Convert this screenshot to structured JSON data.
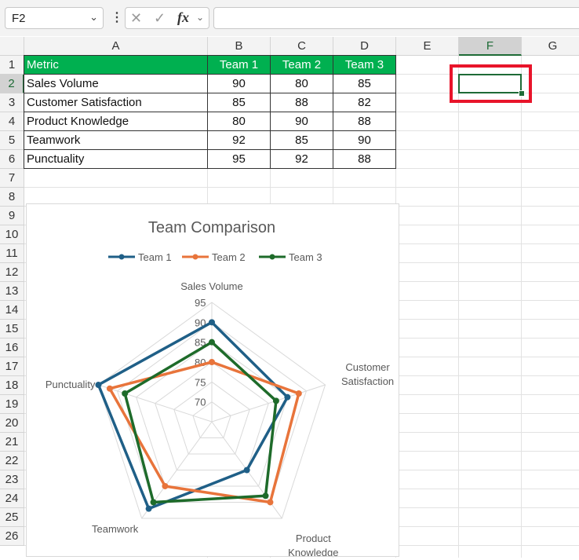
{
  "formula_bar": {
    "name_box": "F2",
    "formula": "",
    "icons": [
      "chevron-down-icon",
      "more-options-icon",
      "cancel-icon",
      "enter-check-icon",
      "function-icon"
    ]
  },
  "columns": [
    "A",
    "B",
    "C",
    "D",
    "E",
    "F",
    "G"
  ],
  "selected_column": "F",
  "rows": [
    "1",
    "2",
    "3",
    "4",
    "5",
    "6",
    "7",
    "8",
    "9",
    "10",
    "11",
    "12",
    "13",
    "14",
    "15",
    "16",
    "17",
    "18",
    "19",
    "20",
    "21",
    "22",
    "23",
    "24",
    "25",
    "26"
  ],
  "selected_row": "2",
  "table": {
    "headers": [
      "Metric",
      "Team 1",
      "Team 2",
      "Team 3"
    ],
    "rows": [
      [
        "Sales Volume",
        "90",
        "80",
        "85"
      ],
      [
        "Customer Satisfaction",
        "85",
        "88",
        "82"
      ],
      [
        "Product Knowledge",
        "80",
        "90",
        "88"
      ],
      [
        "Teamwork",
        "92",
        "85",
        "90"
      ],
      [
        "Punctuality",
        "95",
        "92",
        "88"
      ]
    ],
    "header_color": "#00b050"
  },
  "colors": {
    "selection": "#1e6b36",
    "highlight_box": "#e8142a"
  },
  "chart_data": {
    "type": "radar",
    "title": "Team Comparison",
    "categories": [
      "Sales Volume",
      "Customer Satisfaction",
      "Product Knowledge",
      "Teamwork",
      "Punctuality"
    ],
    "axis_ticks": [
      "95",
      "90",
      "85",
      "80",
      "75",
      "70"
    ],
    "axis_range": [
      65,
      95
    ],
    "series": [
      {
        "name": "Team 1",
        "values": [
          90,
          85,
          80,
          92,
          95
        ],
        "color": "#1f5f87"
      },
      {
        "name": "Team 2",
        "values": [
          80,
          88,
          90,
          85,
          92
        ],
        "color": "#e8743b"
      },
      {
        "name": "Team 3",
        "values": [
          85,
          82,
          88,
          90,
          88
        ],
        "color": "#1e6b2a"
      }
    ],
    "legend": "top",
    "grid": true
  }
}
